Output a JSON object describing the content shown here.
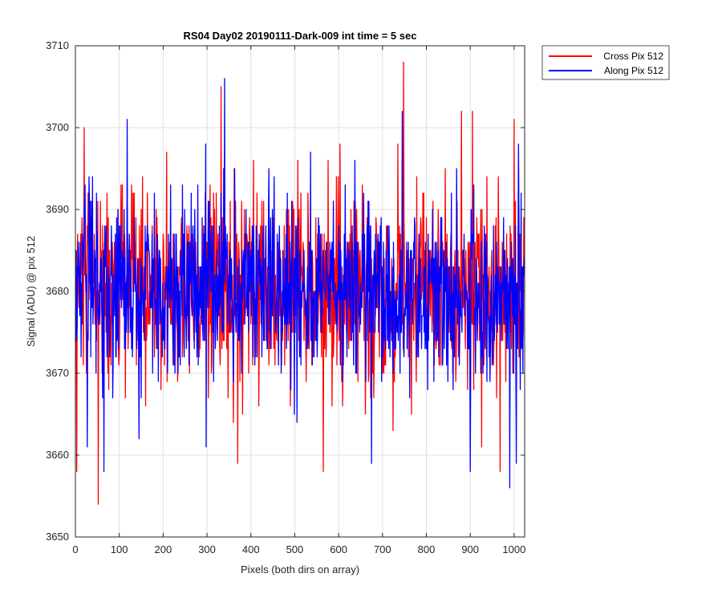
{
  "chart_data": {
    "type": "line",
    "title": "RS04 Day02 20190111-Dark-009 int time = 5 sec",
    "xlabel": "Pixels (both dirs on array)",
    "ylabel": "Signal (ADU) @ pix 512",
    "xlim": [
      0,
      1024
    ],
    "ylim": [
      3650,
      3710
    ],
    "xticks": [
      0,
      100,
      200,
      300,
      400,
      500,
      600,
      700,
      800,
      900,
      1000
    ],
    "yticks": [
      3650,
      3660,
      3670,
      3680,
      3690,
      3700,
      3710
    ],
    "grid": true,
    "legend_position": "outside-top-right",
    "series": [
      {
        "name": "Cross Pix 512",
        "color": "#ff0000",
        "mean": 3680,
        "std": 6,
        "n_points": 1024,
        "noise_seed": 12345,
        "notable_points": [
          {
            "x": 3,
            "y": 3658
          },
          {
            "x": 20,
            "y": 3700
          },
          {
            "x": 52,
            "y": 3654
          },
          {
            "x": 332,
            "y": 3705
          },
          {
            "x": 370,
            "y": 3659
          },
          {
            "x": 565,
            "y": 3658
          },
          {
            "x": 748,
            "y": 3708
          },
          {
            "x": 880,
            "y": 3702
          },
          {
            "x": 905,
            "y": 3702
          },
          {
            "x": 968,
            "y": 3658
          },
          {
            "x": 1000,
            "y": 3701
          }
        ]
      },
      {
        "name": "Along Pix 512",
        "color": "#0000ff",
        "mean": 3680,
        "std": 5.5,
        "n_points": 1024,
        "noise_seed": 67890,
        "notable_points": [
          {
            "x": 27,
            "y": 3661
          },
          {
            "x": 65,
            "y": 3658
          },
          {
            "x": 118,
            "y": 3701
          },
          {
            "x": 340,
            "y": 3706
          },
          {
            "x": 298,
            "y": 3661
          },
          {
            "x": 675,
            "y": 3659
          },
          {
            "x": 745,
            "y": 3702
          },
          {
            "x": 900,
            "y": 3658
          },
          {
            "x": 990,
            "y": 3656
          },
          {
            "x": 1005,
            "y": 3659
          }
        ]
      }
    ]
  }
}
